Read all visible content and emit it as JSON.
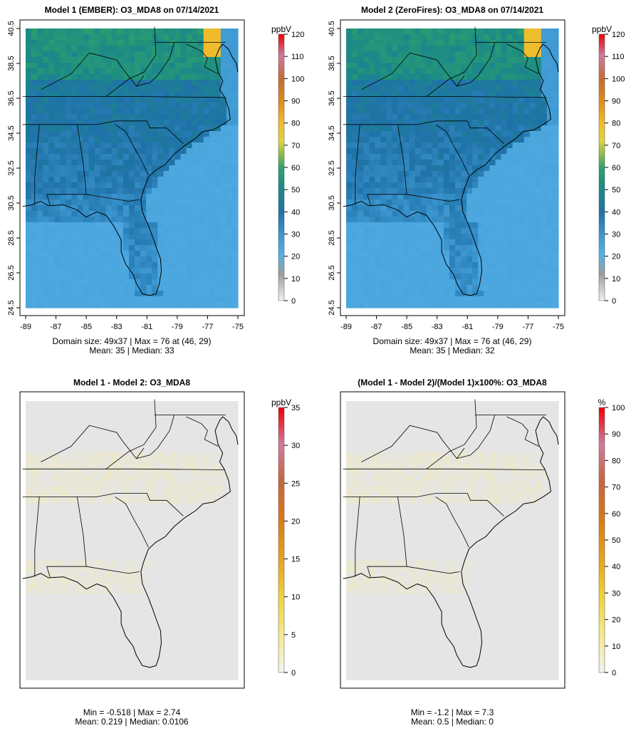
{
  "chart_data": [
    {
      "type": "heatmap",
      "title": "Model 1 (EMBER): O3_MDA8 on 07/14/2021",
      "xticks": [
        "-89",
        "-87",
        "-85",
        "-83",
        "-81",
        "-79",
        "-77",
        "-75"
      ],
      "yticks": [
        "24.5",
        "26.5",
        "28.5",
        "30.5",
        "32.5",
        "34.5",
        "36.5",
        "38.5",
        "40.5"
      ],
      "xlim": [
        -89,
        -75
      ],
      "ylim": [
        24.5,
        40.5
      ],
      "stat_line1": "Domain size: 49x37 | Max = 76 at (46, 29)",
      "stat_line2": "Mean: 35 |  Median: 33",
      "colorbar": {
        "unit": "ppbV",
        "ticks": [
          "0",
          "10",
          "20",
          "30",
          "40",
          "50",
          "60",
          "70",
          "80",
          "90",
          "100",
          "110",
          "120"
        ],
        "range": [
          0,
          120
        ]
      },
      "field": {
        "mean": 35,
        "median": 33,
        "max": 76
      }
    },
    {
      "type": "heatmap",
      "title": "Model 2 (ZeroFires): O3_MDA8 on 07/14/2021",
      "xticks": [
        "-89",
        "-87",
        "-85",
        "-83",
        "-81",
        "-79",
        "-77",
        "-75"
      ],
      "yticks": [
        "24.5",
        "26.5",
        "28.5",
        "30.5",
        "32.5",
        "34.5",
        "36.5",
        "38.5",
        "40.5"
      ],
      "xlim": [
        -89,
        -75
      ],
      "ylim": [
        24.5,
        40.5
      ],
      "stat_line1": "Domain size: 49x37 | Max = 76 at (46, 29)",
      "stat_line2": "Mean: 35 |  Median: 32",
      "colorbar": {
        "unit": "ppbV",
        "ticks": [
          "0",
          "10",
          "20",
          "30",
          "40",
          "50",
          "60",
          "70",
          "80",
          "90",
          "100",
          "110",
          "120"
        ],
        "range": [
          0,
          120
        ]
      },
      "field": {
        "mean": 35,
        "median": 32,
        "max": 76
      }
    },
    {
      "type": "heatmap",
      "title": "Model 1 - Model 2: O3_MDA8",
      "stat_line1": "Min = -0.518 | Max = 2.74",
      "stat_line2": "Mean: 0.219 |  Median: 0.0106",
      "colorbar": {
        "unit": "ppbV",
        "ticks": [
          "0",
          "5",
          "10",
          "15",
          "20",
          "25",
          "30",
          "35"
        ],
        "range": [
          0,
          35
        ]
      },
      "field": {
        "min": -0.518,
        "max": 2.74,
        "mean": 0.219,
        "median": 0.0106
      }
    },
    {
      "type": "heatmap",
      "title": "(Model 1 - Model 2)/(Model 1)x100%: O3_MDA8",
      "stat_line1": "Min = -1.2 | Max = 7.3",
      "stat_line2": "Mean: 0.5 |  Median: 0",
      "colorbar": {
        "unit": "%",
        "ticks": [
          "0",
          "10",
          "20",
          "30",
          "40",
          "50",
          "60",
          "70",
          "80",
          "90",
          "100"
        ],
        "range": [
          0,
          100
        ]
      },
      "field": {
        "min": -1.2,
        "max": 7.3,
        "mean": 0.5,
        "median": 0
      }
    }
  ]
}
